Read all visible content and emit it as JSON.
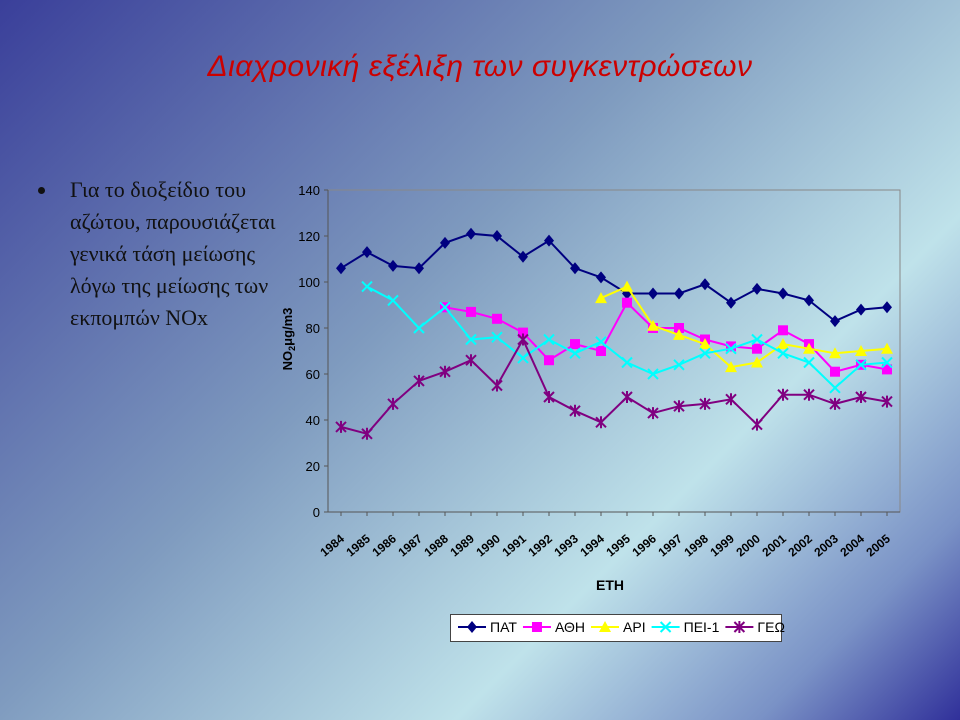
{
  "slide": {
    "title": "Διαχρονική εξέλιξη των συγκεντρώσεων",
    "bullet": "Για το διοξείδιο του αζώτου, παρουσιάζεται γενικά τάση μείωσης λόγω της μείωσης των εκπομπών NOx"
  },
  "chart_data": {
    "type": "line",
    "title": "",
    "xlabel": "ΕΤΗ",
    "ylabel_prefix": "NO",
    "ylabel_sub": "2",
    "ylabel_suffix": "μg/m3",
    "ylim": [
      0,
      140
    ],
    "yticks": [
      0,
      20,
      40,
      60,
      80,
      100,
      120,
      140
    ],
    "grid": false,
    "legend_position": "bottom",
    "categories": [
      "1984",
      "1985",
      "1986",
      "1987",
      "1988",
      "1989",
      "1990",
      "1991",
      "1992",
      "1993",
      "1994",
      "1995",
      "1996",
      "1997",
      "1998",
      "1999",
      "2000",
      "2001",
      "2002",
      "2003",
      "2004",
      "2005"
    ],
    "series": [
      {
        "name": "ΠΑΤ",
        "color": "#000080",
        "marker": "diamond",
        "values": [
          106,
          113,
          107,
          106,
          117,
          121,
          120,
          111,
          118,
          106,
          102,
          95,
          95,
          95,
          99,
          91,
          97,
          95,
          92,
          83,
          88,
          89
        ]
      },
      {
        "name": "ΑΘΗ",
        "color": "#ff00ff",
        "marker": "square",
        "values": [
          null,
          null,
          null,
          null,
          89,
          87,
          84,
          78,
          66,
          73,
          70,
          91,
          80,
          80,
          75,
          72,
          71,
          79,
          73,
          61,
          64,
          62
        ]
      },
      {
        "name": "ΑΡΙ",
        "color": "#ffff00",
        "marker": "triangle",
        "values": [
          null,
          null,
          null,
          null,
          null,
          null,
          null,
          null,
          null,
          null,
          93,
          98,
          81,
          77,
          73,
          63,
          65,
          73,
          71,
          69,
          70,
          71
        ]
      },
      {
        "name": "ΠΕΙ-1",
        "color": "#00ffff",
        "marker": "x",
        "values": [
          null,
          98,
          92,
          80,
          89,
          75,
          76,
          67,
          75,
          69,
          74,
          65,
          60,
          64,
          69,
          71,
          75,
          69,
          65,
          54,
          64,
          65
        ]
      },
      {
        "name": "ΓΕΩ",
        "color": "#800080",
        "marker": "star",
        "values": [
          37,
          34,
          47,
          57,
          61,
          66,
          55,
          75,
          50,
          44,
          39,
          50,
          43,
          46,
          47,
          49,
          38,
          51,
          51,
          47,
          50,
          48
        ]
      }
    ]
  }
}
